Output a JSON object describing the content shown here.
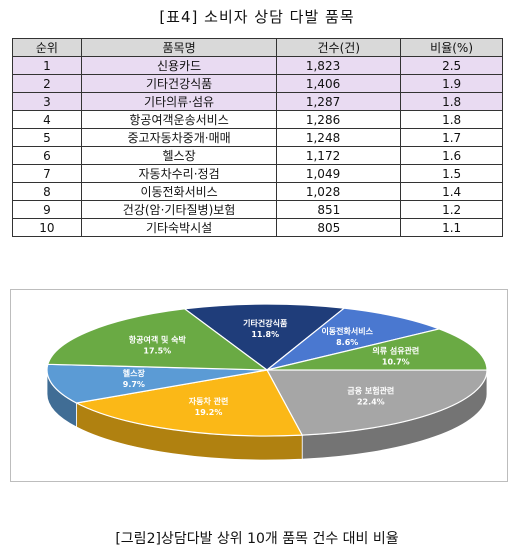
{
  "table_title": "[표4] 소비자 상담 다발 품목",
  "table": {
    "headers": [
      "순위",
      "품목명",
      "건수(건)",
      "비율(%)"
    ],
    "rows": [
      [
        "1",
        "신용카드",
        "1,823",
        "2.5"
      ],
      [
        "2",
        "기타건강식품",
        "1,406",
        "1.9"
      ],
      [
        "3",
        "기타의류·섬유",
        "1,287",
        "1.8"
      ],
      [
        "4",
        "항공여객운송서비스",
        "1,286",
        "1.8"
      ],
      [
        "5",
        "중고자동차중개·매매",
        "1,248",
        "1.7"
      ],
      [
        "6",
        "헬스장",
        "1,172",
        "1.6"
      ],
      [
        "7",
        "자동차수리·정검",
        "1,049",
        "1.5"
      ],
      [
        "8",
        "이동전화서비스",
        "1,028",
        "1.4"
      ],
      [
        "9",
        "건강(암·기타질병)보험",
        "851",
        "1.2"
      ],
      [
        "10",
        "기타숙박시설",
        "805",
        "1.1"
      ]
    ],
    "highlighted_rows": [
      1,
      2,
      3
    ]
  },
  "chart_data": {
    "type": "pie",
    "style": "3d",
    "slices": [
      {
        "label": "기타건강식품",
        "value": 11.8,
        "color": "#1f3d7a"
      },
      {
        "label": "이동전화서비스",
        "value": 8.6,
        "color": "#4a78d0"
      },
      {
        "label": "의류 섬유관련",
        "value": 10.7,
        "color": "#6aaa44"
      },
      {
        "label": "금융 보험관련",
        "value": 22.4,
        "color": "#a6a6a6"
      },
      {
        "label": "자동차 관련",
        "value": 19.2,
        "color": "#fbb817"
      },
      {
        "label": "헬스장",
        "value": 9.7,
        "color": "#5b9bd5"
      },
      {
        "label": "항공여객 및 숙박",
        "value": 17.5,
        "color": "#6aaa44"
      }
    ]
  },
  "caption": "[그림2]상담다발 상위 10개 품목 건수 대비 비율"
}
